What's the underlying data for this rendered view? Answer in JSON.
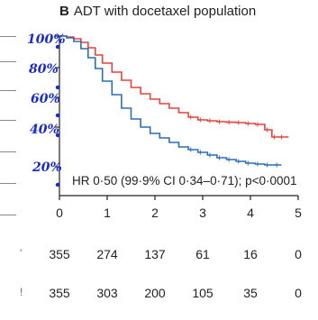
{
  "panel": {
    "letter": "B",
    "title": "ADT with docetaxel population"
  },
  "stat_annotation": "HR 0·50 (99·9% CI 0·34–0·71); p<0·0001",
  "handwritten_y_labels": [
    "100%",
    "80%",
    "60%",
    "40%",
    "20%"
  ],
  "colors": {
    "red_series": "#e8403a",
    "blue_series": "#2a6fb5",
    "axis": "#222222",
    "handwriting": "#1a2cc8"
  },
  "risk_table": {
    "rows": [
      {
        "marker": "'",
        "values": [
          "355",
          "274",
          "137",
          "61",
          "16",
          "0"
        ]
      },
      {
        "marker": "!",
        "values": [
          "355",
          "303",
          "200",
          "105",
          "35",
          "0"
        ]
      }
    ]
  },
  "chart_data": {
    "type": "line",
    "title": "ADT with docetaxel population",
    "xlabel": "",
    "ylabel": "",
    "xlim": [
      0,
      5
    ],
    "ylim": [
      0,
      1
    ],
    "x_ticks": [
      "0",
      "1",
      "2",
      "3",
      "4",
      "5"
    ],
    "y_ticks": [
      "100%",
      "80%",
      "60%",
      "40%",
      "20%"
    ],
    "grid": false,
    "series": [
      {
        "color": "#e8403a",
        "x": [
          0,
          0.15,
          0.3,
          0.45,
          0.6,
          0.75,
          0.9,
          1.1,
          1.3,
          1.5,
          1.7,
          1.9,
          2.1,
          2.3,
          2.5,
          2.7,
          2.9,
          3.1,
          3.3,
          3.5,
          3.7,
          3.9,
          4.1,
          4.3,
          4.45,
          4.6,
          4.8
        ],
        "y": [
          1.0,
          0.995,
          0.985,
          0.965,
          0.935,
          0.895,
          0.85,
          0.8,
          0.755,
          0.715,
          0.68,
          0.65,
          0.625,
          0.6,
          0.575,
          0.55,
          0.535,
          0.53,
          0.525,
          0.522,
          0.52,
          0.515,
          0.51,
          0.48,
          0.44,
          0.44,
          0.44
        ]
      },
      {
        "color": "#2a6fb5",
        "x": [
          0,
          0.15,
          0.3,
          0.45,
          0.6,
          0.75,
          0.9,
          1.1,
          1.3,
          1.5,
          1.7,
          1.9,
          2.1,
          2.3,
          2.5,
          2.7,
          2.9,
          3.1,
          3.3,
          3.5,
          3.7,
          3.9,
          4.1,
          4.3,
          4.5,
          4.65
        ],
        "y": [
          1.0,
          0.99,
          0.97,
          0.93,
          0.88,
          0.82,
          0.75,
          0.675,
          0.6,
          0.54,
          0.495,
          0.46,
          0.435,
          0.41,
          0.385,
          0.37,
          0.355,
          0.34,
          0.325,
          0.315,
          0.305,
          0.295,
          0.29,
          0.285,
          0.285,
          0.285
        ]
      }
    ]
  }
}
